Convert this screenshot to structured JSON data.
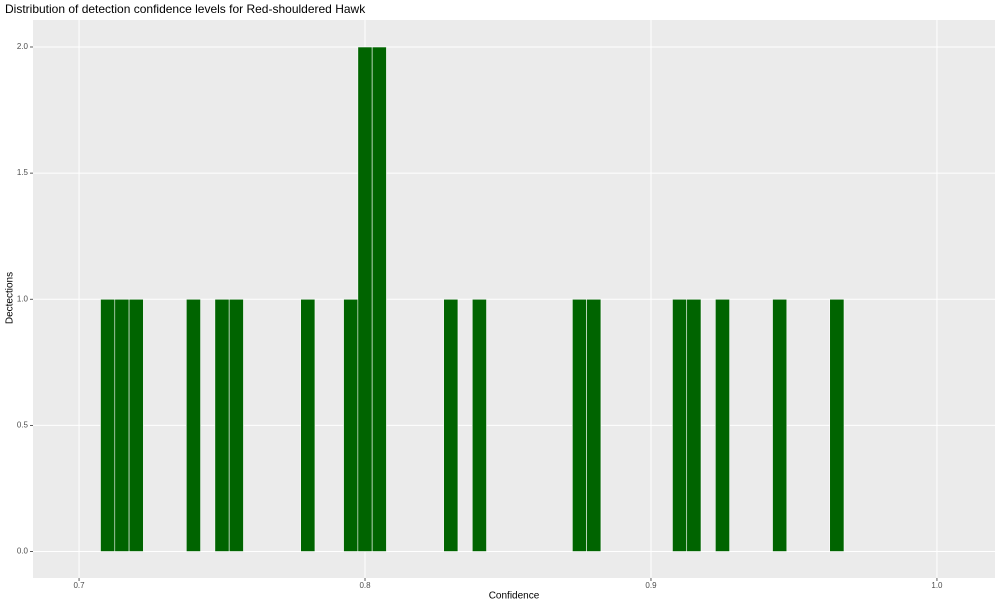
{
  "chart_data": {
    "type": "histogram",
    "title": "Distribution of detection confidence levels for Red-shouldered Hawk",
    "x_label": "Confidence",
    "y_label": "Dectections",
    "bins": [
      0.7075,
      0.7125,
      0.7175,
      0.7225,
      0.7275,
      0.7325,
      0.7375,
      0.7425,
      0.7475,
      0.7525,
      0.7575,
      0.7625,
      0.7675,
      0.7725,
      0.7775,
      0.7825,
      0.7875,
      0.7925,
      0.7975,
      0.8025,
      0.8075,
      0.8125,
      0.8175,
      0.8225,
      0.8275,
      0.8325,
      0.8375,
      0.8425,
      0.8475,
      0.8525,
      0.8575,
      0.8625,
      0.8675,
      0.8725,
      0.8775,
      0.8825,
      0.8875,
      0.8925,
      0.8975,
      0.9025,
      0.9075,
      0.9125,
      0.9175,
      0.9225,
      0.9275,
      0.9325,
      0.9375,
      0.9425,
      0.9475,
      0.9525,
      0.9575,
      0.9625,
      0.9675
    ],
    "counts": [
      1,
      1,
      1,
      0,
      0,
      0,
      1,
      0,
      1,
      1,
      0,
      0,
      0,
      0,
      1,
      0,
      0,
      1,
      2,
      2,
      0,
      0,
      0,
      0,
      1,
      0,
      1,
      0,
      0,
      0,
      0,
      0,
      0,
      1,
      1,
      0,
      0,
      0,
      0,
      0,
      1,
      1,
      0,
      1,
      0,
      0,
      0,
      1,
      0,
      0,
      0,
      1
    ],
    "color": "#006400",
    "xlim": [
      0.6839,
      1.0203
    ],
    "xticks": [
      0.7,
      0.8,
      0.9,
      {
        "value": 1,
        "label": "1.0"
      }
    ],
    "ylim": [
      -0.105,
      2.107
    ],
    "yticks": [
      {
        "value": 0,
        "label": "0.0"
      },
      0.5,
      {
        "value": 1,
        "label": "1.0"
      },
      1.5,
      {
        "value": 2,
        "label": "2.0"
      }
    ],
    "grid": true
  }
}
